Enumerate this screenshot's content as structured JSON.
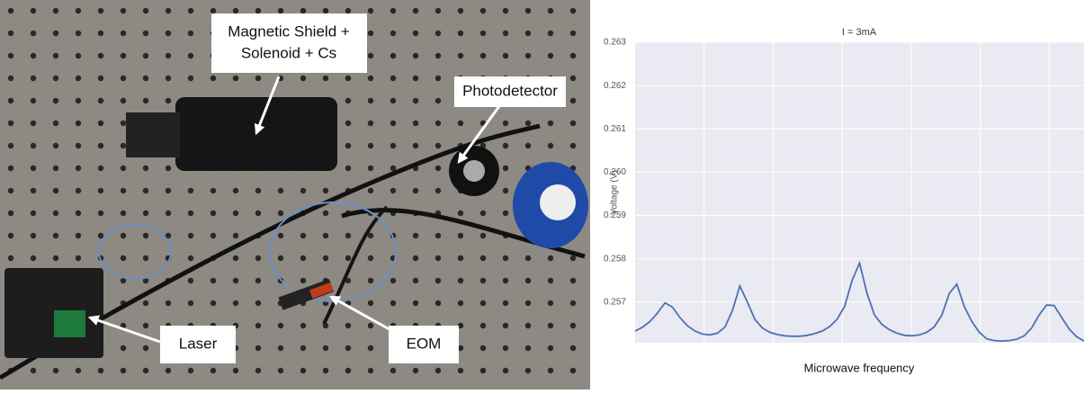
{
  "photo": {
    "labels": [
      {
        "lines": [
          "Magnetic Shield +",
          "Solenoid + Cs"
        ]
      },
      {
        "lines": [
          "Photodetector"
        ]
      },
      {
        "lines": [
          "Laser"
        ]
      },
      {
        "lines": [
          "EOM"
        ]
      }
    ]
  },
  "chart_data": {
    "type": "line",
    "title": "I = 3mA",
    "y_label": "Voltage (V)",
    "x_label": "Microwave frequency",
    "ylim": [
      0.25606,
      0.263
    ],
    "yticks": [
      0.257,
      0.258,
      0.259,
      {
        "value": 0.26,
        "label": "0.260"
      },
      0.261,
      0.262,
      0.263
    ],
    "grid": true,
    "background": "#eaeaf2",
    "series": [
      {
        "color": "#4c72b0",
        "values": [
          0.25633,
          0.25642,
          0.25655,
          0.25675,
          0.25698,
          0.25688,
          0.25664,
          0.25645,
          0.25633,
          0.25626,
          0.25624,
          0.25628,
          0.25642,
          0.2568,
          0.25737,
          0.257,
          0.2566,
          0.2564,
          0.2563,
          0.25625,
          0.25622,
          0.25621,
          0.25621,
          0.25623,
          0.25627,
          0.25633,
          0.25643,
          0.2566,
          0.2569,
          0.2575,
          0.2579,
          0.2572,
          0.2567,
          0.25648,
          0.25636,
          0.25628,
          0.25623,
          0.25622,
          0.25624,
          0.2563,
          0.25643,
          0.2567,
          0.2572,
          0.25741,
          0.2569,
          0.25655,
          0.2563,
          0.25615,
          0.25611,
          0.2561,
          0.25611,
          0.25614,
          0.25622,
          0.2564,
          0.2567,
          0.25693,
          0.25692,
          0.25665,
          0.25638,
          0.2562,
          0.2561
        ]
      }
    ]
  }
}
